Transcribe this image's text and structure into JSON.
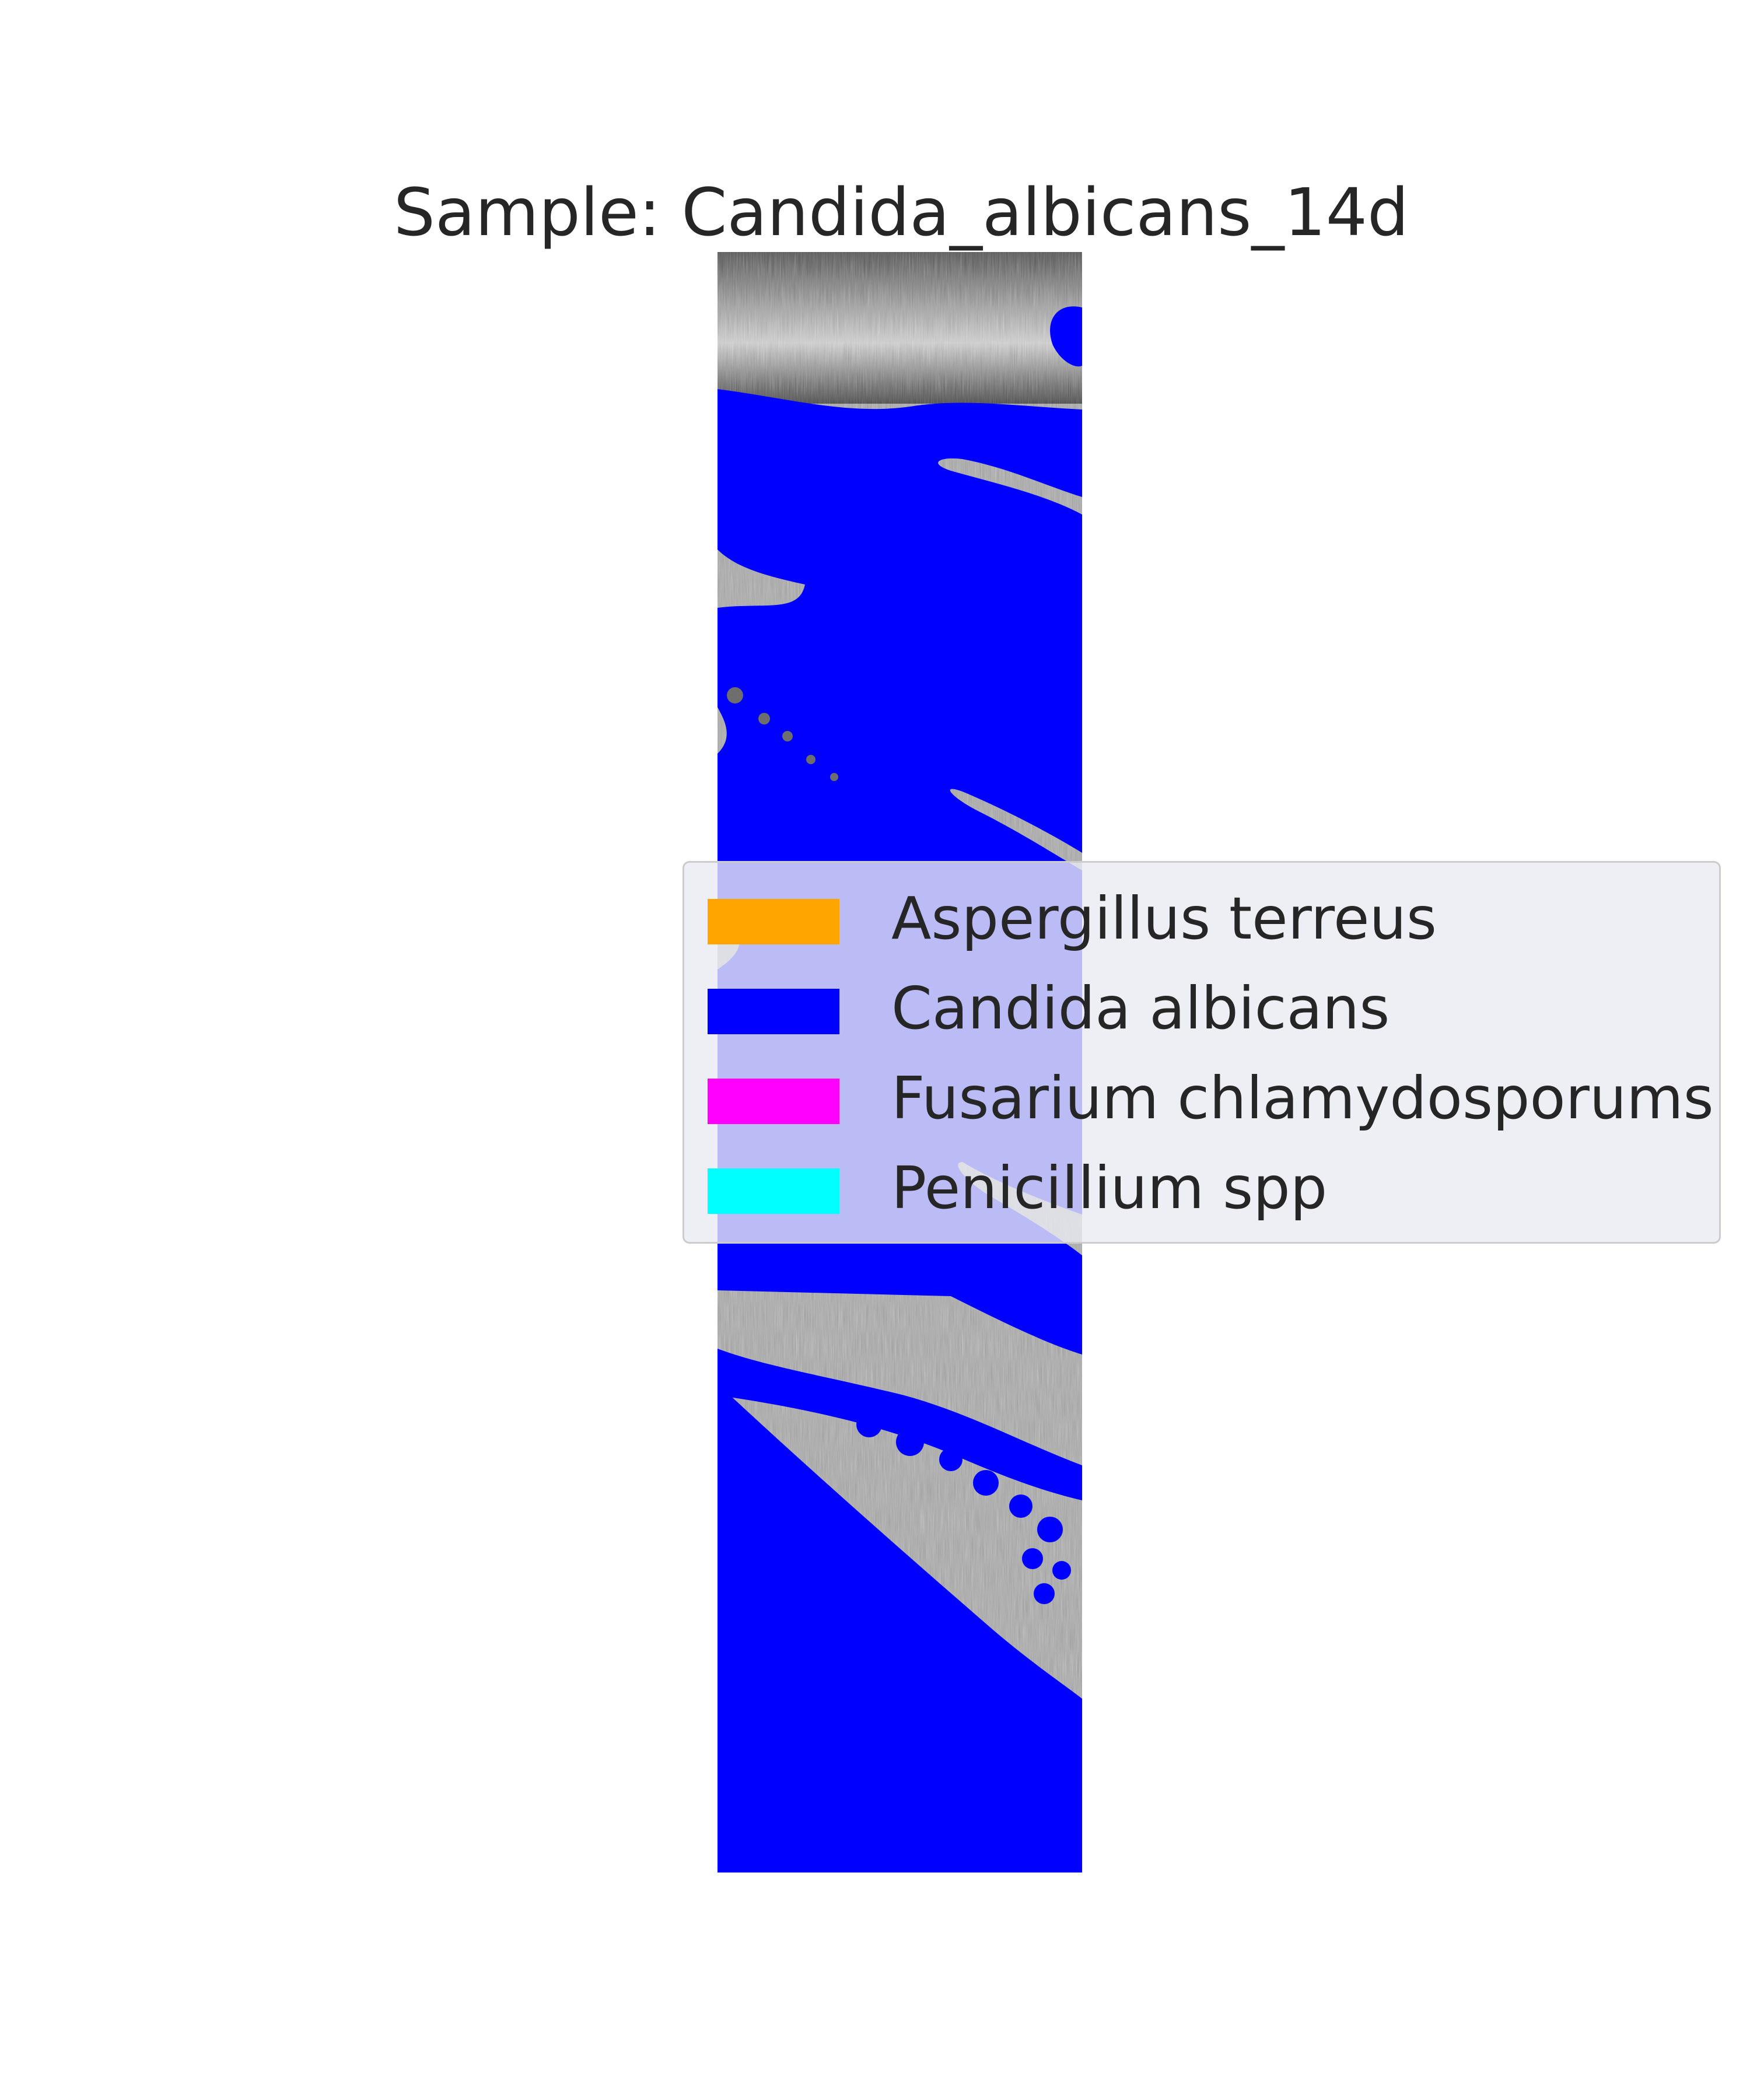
{
  "figure": {
    "title": "Sample: Candida_albicans_14d"
  },
  "legend": {
    "items": [
      {
        "label": "Aspergillus terreus",
        "color": "#FFA500"
      },
      {
        "label": "Candida albicans",
        "color": "#0000FF"
      },
      {
        "label": "Fusarium chlamydosporums",
        "color": "#FF00FF"
      },
      {
        "label": "Penicillium spp",
        "color": "#00FFFF"
      }
    ]
  },
  "colors": {
    "mask": "#0000FF",
    "legend_background": "#EAEAF2",
    "legend_border": "#CCCCCC",
    "text": "#262626"
  }
}
